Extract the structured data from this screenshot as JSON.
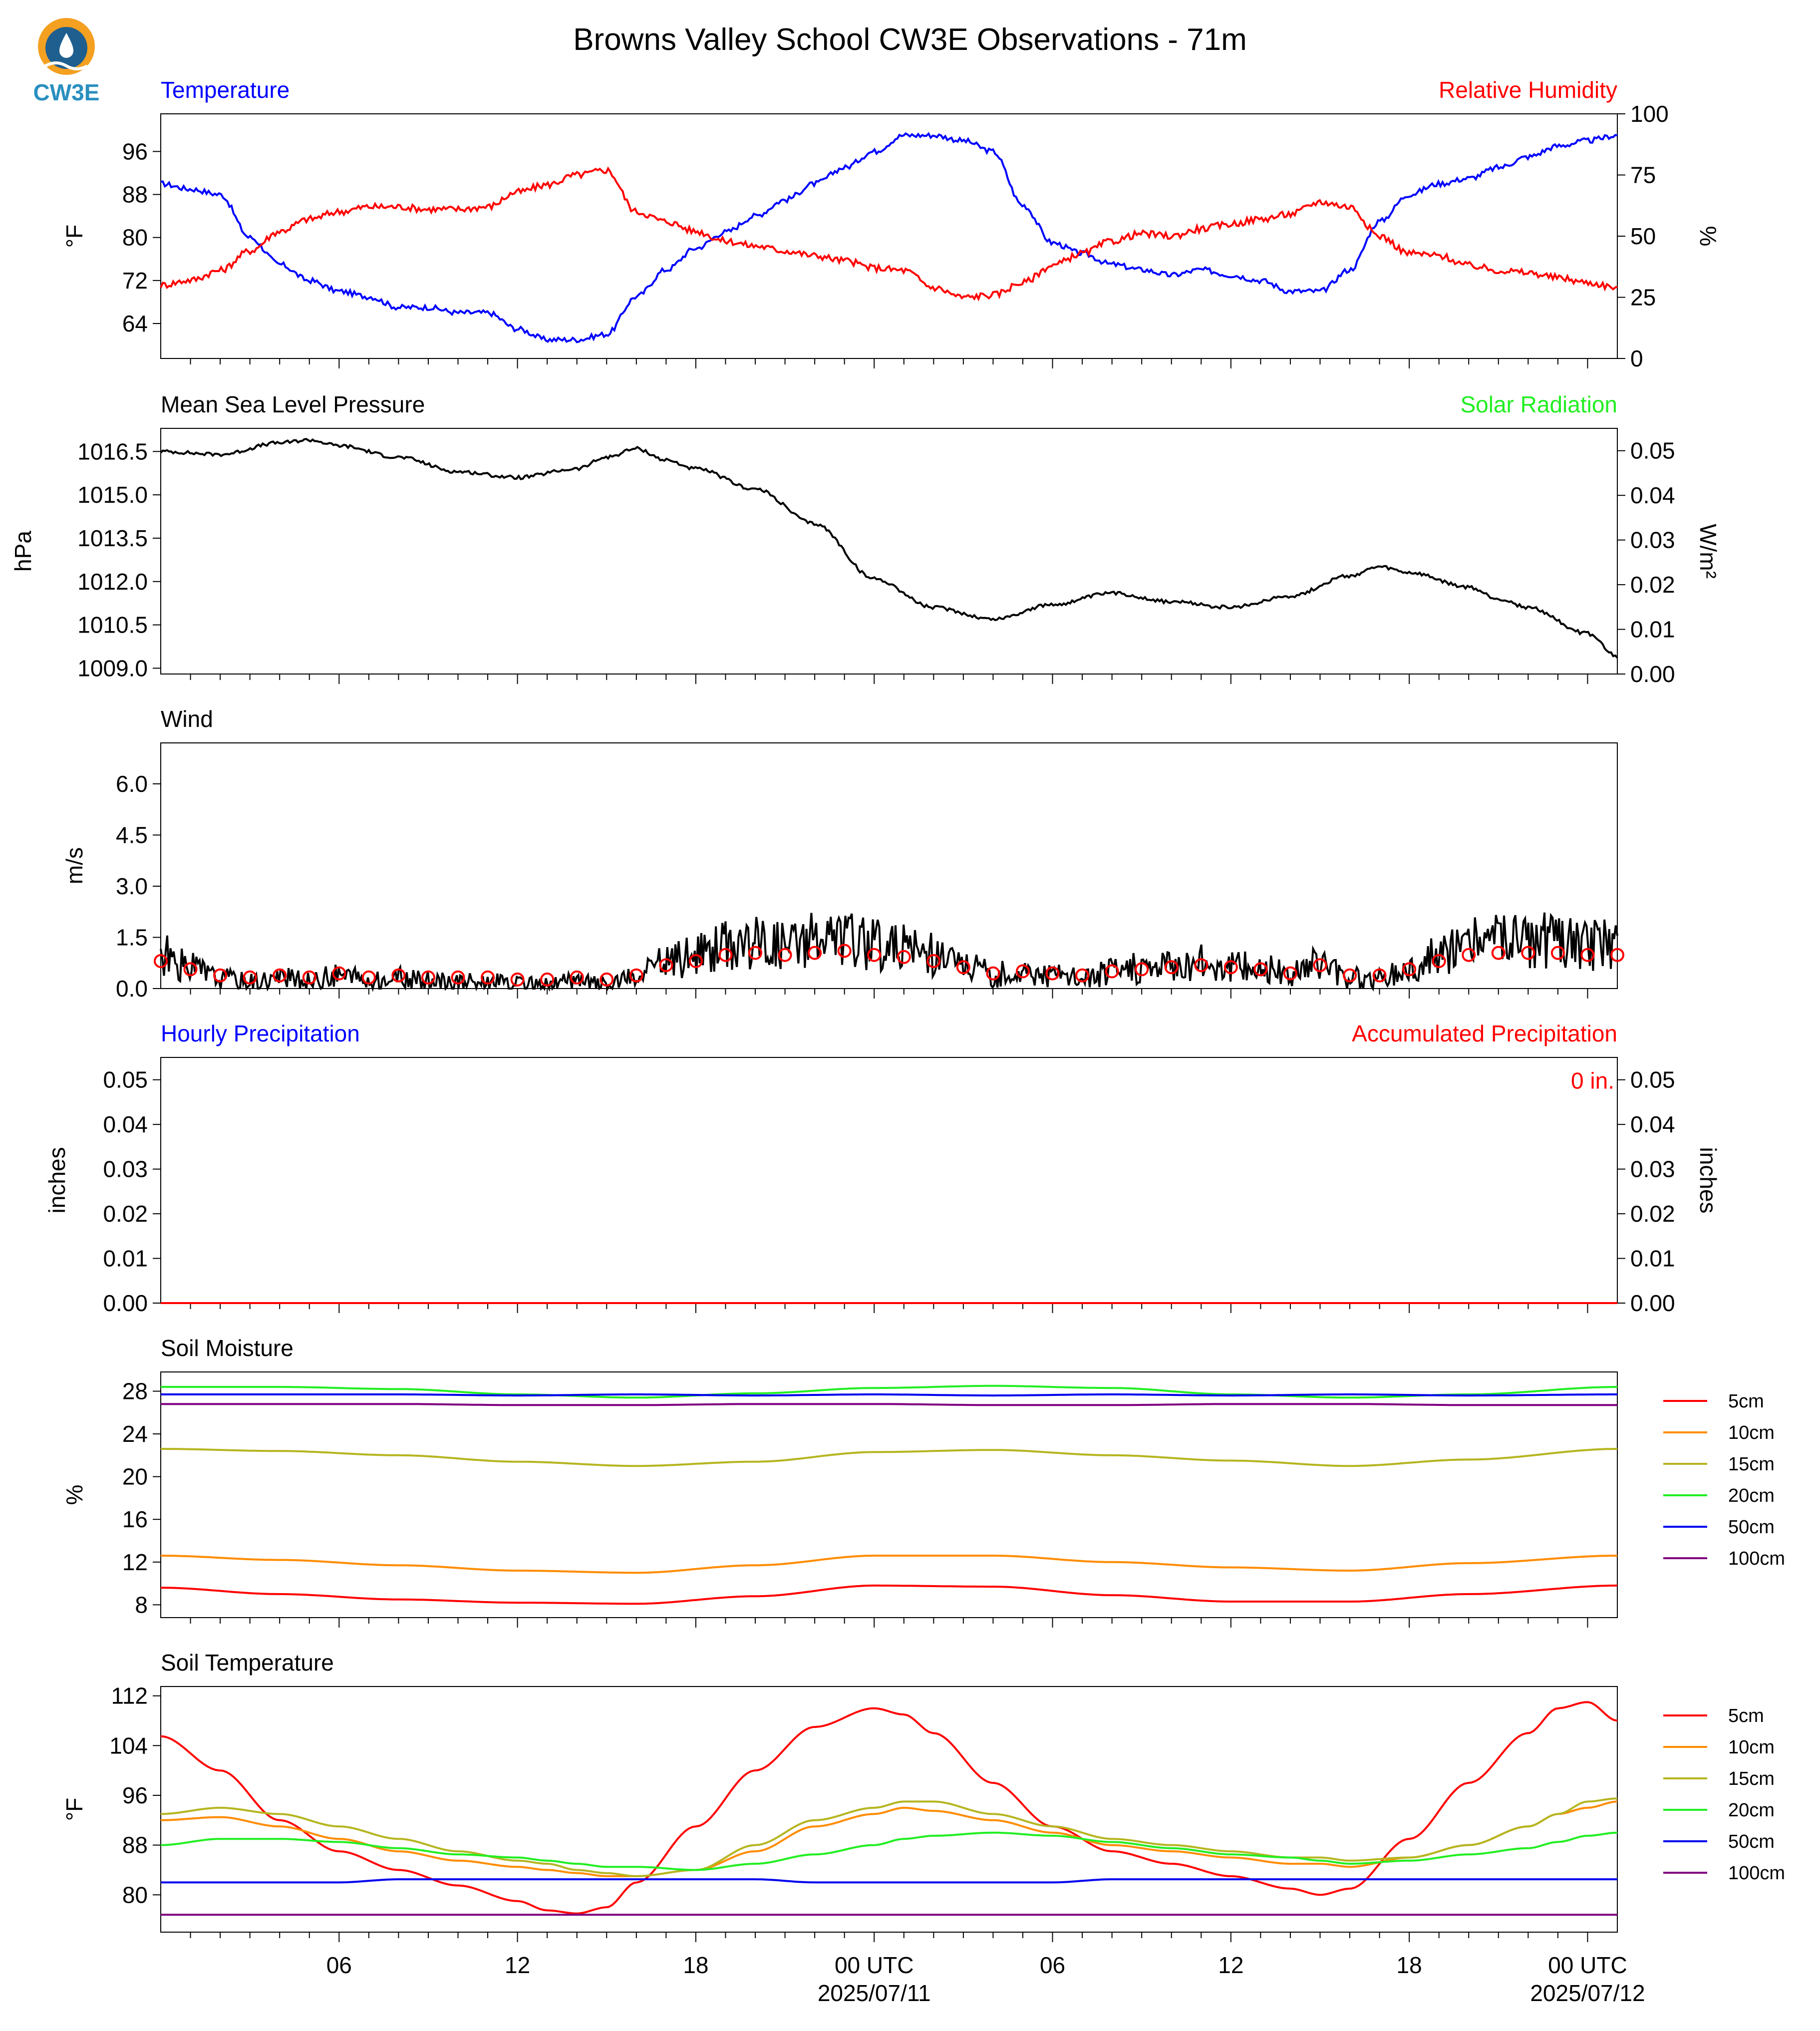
{
  "title": "Browns Valley School CW3E Observations - 71m",
  "logo_text": "CW3E",
  "time_axis": {
    "start": "2025-07-10T00:00Z",
    "end": "2025-07-12T01:00Z",
    "tick_labels": [
      "06",
      "12",
      "18",
      "00 UTC",
      "06",
      "12",
      "18",
      "00 UTC"
    ],
    "date_labels": [
      "2025/07/11",
      "2025/07/12"
    ]
  },
  "chart_data": [
    {
      "type": "line",
      "title_left": "Temperature",
      "title_right": "Relative Humidity",
      "ylabel_left": "°F",
      "ylabel_right": "%",
      "ylim_left": [
        57.5,
        103
      ],
      "ylim_right": [
        0,
        100
      ],
      "yticks_left": [
        "64",
        "72",
        "80",
        "88",
        "96"
      ],
      "yticks_right": [
        "0",
        "25",
        "50",
        "75",
        "100"
      ],
      "x_hours": [
        0,
        1,
        2,
        3,
        4,
        5,
        6,
        7,
        8,
        9,
        10,
        11,
        12,
        13,
        14,
        15,
        16,
        17,
        18,
        19,
        20,
        21,
        22,
        23,
        24,
        25,
        26,
        27,
        28,
        29,
        30,
        31,
        32,
        33,
        34,
        35,
        36,
        37,
        38,
        39,
        40,
        41,
        42,
        43,
        44,
        45,
        46,
        47,
        48,
        49
      ],
      "series": [
        {
          "name": "Temperature",
          "color": "#0000ff",
          "axis": "left",
          "values": [
            90,
            89,
            88,
            80,
            75,
            72,
            70,
            69,
            67,
            67,
            66,
            66,
            63,
            61,
            61,
            62,
            69,
            74,
            78,
            81,
            84,
            87,
            90,
            93,
            96,
            99,
            99,
            98,
            96,
            86,
            79,
            77,
            75,
            74,
            73,
            74,
            73,
            72,
            70,
            70,
            74,
            83,
            88,
            90,
            91,
            93,
            95,
            97,
            98,
            99
          ]
        },
        {
          "name": "Relative Humidity",
          "color": "#ff0000",
          "axis": "right",
          "values": [
            30,
            32,
            36,
            44,
            52,
            57,
            60,
            62,
            62,
            61,
            61,
            62,
            68,
            71,
            75,
            77,
            60,
            56,
            52,
            48,
            46,
            44,
            42,
            40,
            37,
            36,
            29,
            25,
            26,
            31,
            38,
            43,
            48,
            51,
            50,
            53,
            55,
            57,
            59,
            64,
            62,
            50,
            43,
            42,
            38,
            36,
            35,
            33,
            31,
            29
          ]
        }
      ]
    },
    {
      "type": "line",
      "title_left": "Mean Sea Level Pressure",
      "title_right": "Solar Radiation",
      "ylabel_left": "hPa",
      "ylabel_right": "W/m²",
      "ylim_left": [
        1008.8,
        1017.3
      ],
      "ylim_right": [
        0,
        0.055
      ],
      "yticks_left": [
        "1009.0",
        "1010.5",
        "1012.0",
        "1013.5",
        "1015.0",
        "1016.5"
      ],
      "yticks_right": [
        "0.00",
        "0.01",
        "0.02",
        "0.03",
        "0.04",
        "0.05"
      ],
      "x_hours": [
        0,
        2,
        4,
        5,
        6,
        8,
        10,
        12,
        14,
        15,
        16,
        17,
        18,
        20,
        22,
        24,
        26,
        28,
        30,
        32,
        34,
        36,
        38,
        40,
        41,
        42,
        44,
        45,
        46,
        48,
        49
      ],
      "series": [
        {
          "name": "Mean Sea Level Pressure",
          "color": "#000000",
          "axis": "left",
          "values": [
            1016.5,
            1016.4,
            1016.8,
            1016.9,
            1016.7,
            1016.3,
            1015.8,
            1015.6,
            1015.9,
            1016.3,
            1016.6,
            1016.2,
            1015.9,
            1015.2,
            1014.0,
            1012.1,
            1011.1,
            1010.7,
            1011.2,
            1011.6,
            1011.3,
            1011.1,
            1011.5,
            1012.2,
            1012.5,
            1012.3,
            1011.8,
            1011.4,
            1011.1,
            1010.2,
            1009.4
          ]
        }
      ]
    },
    {
      "type": "line",
      "title_left": "Wind",
      "ylabel_left": "m/s",
      "ylim_left": [
        0,
        7.2
      ],
      "yticks_left": [
        "0.0",
        "1.5",
        "3.0",
        "4.5",
        "6.0"
      ],
      "x_hours": [
        0,
        1,
        2,
        3,
        4,
        5,
        6,
        7,
        8,
        9,
        10,
        11,
        12,
        13,
        14,
        15,
        16,
        17,
        18,
        19,
        20,
        21,
        22,
        23,
        24,
        25,
        26,
        27,
        28,
        29,
        30,
        31,
        32,
        33,
        34,
        35,
        36,
        37,
        38,
        39,
        40,
        41,
        42,
        43,
        44,
        45,
        46,
        47,
        48,
        49
      ],
      "series": [
        {
          "name": "Wind Speed",
          "color": "#000000",
          "axis": "left",
          "values": [
            1.0,
            0.6,
            0.3,
            0.2,
            0.3,
            0.2,
            0.4,
            0.2,
            0.3,
            0.2,
            0.2,
            0.2,
            0.1,
            0.1,
            0.2,
            0.1,
            0.3,
            0.8,
            1.0,
            1.3,
            1.4,
            1.3,
            1.4,
            1.5,
            1.3,
            1.2,
            1.0,
            0.7,
            0.4,
            0.5,
            0.4,
            0.3,
            0.5,
            0.6,
            0.7,
            0.8,
            0.7,
            0.6,
            0.4,
            0.8,
            0.3,
            0.3,
            0.6,
            1.0,
            1.3,
            1.4,
            1.4,
            1.4,
            1.3,
            1.3
          ]
        }
      ],
      "barb_hours": [
        0,
        1,
        2,
        3,
        4,
        5,
        6,
        7,
        8,
        9,
        10,
        11,
        12,
        13,
        14,
        15,
        16,
        17,
        18,
        19,
        20,
        21,
        22,
        23,
        24,
        25,
        26,
        27,
        28,
        29,
        30,
        31,
        32,
        33,
        34,
        35,
        36,
        37,
        38,
        39,
        40,
        41,
        42,
        43,
        44,
        45,
        46,
        47,
        48,
        49
      ],
      "barb_color": "#ff0000"
    },
    {
      "type": "line",
      "title_left": "Hourly Precipitation",
      "title_right": "Accumulated Precipitation",
      "ylabel_left": "inches",
      "ylabel_right": "inches",
      "ylim_left": [
        0,
        0.055
      ],
      "ylim_right": [
        0,
        0.055
      ],
      "yticks_left": [
        "0.00",
        "0.01",
        "0.02",
        "0.03",
        "0.04",
        "0.05"
      ],
      "yticks_right": [
        "0.00",
        "0.01",
        "0.02",
        "0.03",
        "0.04",
        "0.05"
      ],
      "accumulated_label": "0 in.",
      "x_hours": [
        0,
        49
      ],
      "series": [
        {
          "name": "Hourly Precipitation",
          "color": "#0000ff",
          "axis": "left",
          "values": [
            0,
            0
          ]
        },
        {
          "name": "Accumulated Precipitation",
          "color": "#ff0000",
          "axis": "right",
          "values": [
            0,
            0
          ]
        }
      ]
    },
    {
      "type": "line",
      "title_left": "Soil Moisture",
      "ylabel_left": "%",
      "ylim_left": [
        6.8,
        29.8
      ],
      "yticks_left": [
        "8",
        "12",
        "16",
        "20",
        "24",
        "28"
      ],
      "x_hours": [
        0,
        4,
        8,
        12,
        16,
        20,
        24,
        28,
        32,
        36,
        40,
        44,
        49
      ],
      "series": [
        {
          "name": "5cm",
          "color": "#ff0000",
          "axis": "left",
          "values": [
            9.6,
            9.0,
            8.5,
            8.2,
            8.1,
            8.8,
            9.8,
            9.7,
            8.9,
            8.3,
            8.3,
            9.0,
            9.8
          ]
        },
        {
          "name": "10cm",
          "color": "#ff8c00",
          "axis": "left",
          "values": [
            12.6,
            12.2,
            11.7,
            11.2,
            11.0,
            11.7,
            12.6,
            12.6,
            12.0,
            11.5,
            11.2,
            11.9,
            12.6
          ]
        },
        {
          "name": "15cm",
          "color": "#b5b520",
          "axis": "left",
          "values": [
            22.6,
            22.4,
            22.0,
            21.4,
            21.0,
            21.4,
            22.3,
            22.5,
            22.0,
            21.5,
            21.0,
            21.6,
            22.6
          ]
        },
        {
          "name": "20cm",
          "color": "#22ee22",
          "axis": "left",
          "values": [
            28.4,
            28.4,
            28.2,
            27.7,
            27.4,
            27.8,
            28.3,
            28.5,
            28.3,
            27.7,
            27.4,
            27.7,
            28.4
          ]
        },
        {
          "name": "50cm",
          "color": "#0000ee",
          "axis": "left",
          "values": [
            27.7,
            27.7,
            27.7,
            27.6,
            27.7,
            27.6,
            27.7,
            27.6,
            27.7,
            27.6,
            27.7,
            27.6,
            27.7
          ]
        },
        {
          "name": "100cm",
          "color": "#800080",
          "axis": "left",
          "values": [
            26.8,
            26.8,
            26.8,
            26.7,
            26.7,
            26.8,
            26.8,
            26.7,
            26.7,
            26.8,
            26.8,
            26.7,
            26.7
          ]
        }
      ],
      "legend_position": "right"
    },
    {
      "type": "line",
      "title_left": "Soil Temperature",
      "ylabel_left": "°F",
      "ylim_left": [
        74,
        113.5
      ],
      "yticks_left": [
        "80",
        "88",
        "96",
        "104",
        "112"
      ],
      "x_hours": [
        0,
        2,
        4,
        6,
        8,
        10,
        12,
        13,
        14,
        15,
        16,
        18,
        20,
        22,
        24,
        25,
        26,
        28,
        30,
        32,
        34,
        36,
        38,
        39,
        40,
        42,
        44,
        46,
        47,
        48,
        49
      ],
      "series": [
        {
          "name": "5cm",
          "color": "#ff0000",
          "axis": "left",
          "values": [
            105.5,
            100,
            92,
            87,
            84,
            81.5,
            79,
            77.5,
            77,
            78,
            82,
            91,
            100,
            107,
            110,
            109,
            106,
            98,
            91,
            87,
            85,
            83,
            81,
            80,
            81,
            89,
            98,
            106,
            110,
            111,
            108
          ]
        },
        {
          "name": "10cm",
          "color": "#ff8c00",
          "axis": "left",
          "values": [
            92,
            92.5,
            91,
            89,
            87,
            85.5,
            84.5,
            84,
            83.5,
            83,
            83,
            84,
            87,
            91,
            93,
            94,
            93.5,
            92,
            90,
            88,
            87,
            86,
            85,
            85,
            84.5,
            86,
            88,
            91,
            93,
            94,
            95
          ]
        },
        {
          "name": "15cm",
          "color": "#b5b520",
          "axis": "left",
          "values": [
            93,
            94,
            93,
            91,
            89,
            87,
            85.5,
            85,
            84,
            83.5,
            83,
            84,
            88,
            92,
            94,
            95,
            95,
            93,
            91,
            89,
            88,
            87,
            86,
            86,
            85.5,
            86,
            88,
            91,
            93,
            95,
            95.5
          ]
        },
        {
          "name": "20cm",
          "color": "#22ee22",
          "axis": "left",
          "values": [
            88,
            89,
            89,
            88.5,
            87.5,
            86.5,
            86,
            85.5,
            85,
            84.5,
            84.5,
            84,
            85,
            86.5,
            88,
            89,
            89.5,
            90,
            89.5,
            88.5,
            87.5,
            86.5,
            86,
            85.5,
            85,
            85.5,
            86.5,
            87.5,
            88.5,
            89.5,
            90
          ]
        },
        {
          "name": "50cm",
          "color": "#0000ee",
          "axis": "left",
          "values": [
            82,
            82,
            82,
            82,
            82.5,
            82.5,
            82.5,
            82.5,
            82.5,
            82.5,
            82.5,
            82.5,
            82.5,
            82,
            82,
            82,
            82,
            82,
            82,
            82.5,
            82.5,
            82.5,
            82.5,
            82.5,
            82.5,
            82.5,
            82.5,
            82.5,
            82.5,
            82.5,
            82.5
          ]
        },
        {
          "name": "100cm",
          "color": "#800080",
          "axis": "left",
          "values": [
            76.8,
            76.8,
            76.8,
            76.8,
            76.8,
            76.8,
            76.8,
            76.8,
            76.8,
            76.8,
            76.8,
            76.8,
            76.8,
            76.8,
            76.8,
            76.8,
            76.8,
            76.8,
            76.8,
            76.8,
            76.8,
            76.8,
            76.8,
            76.8,
            76.8,
            76.8,
            76.8,
            76.8,
            76.8,
            76.8,
            76.8
          ]
        }
      ],
      "legend_position": "right"
    }
  ]
}
